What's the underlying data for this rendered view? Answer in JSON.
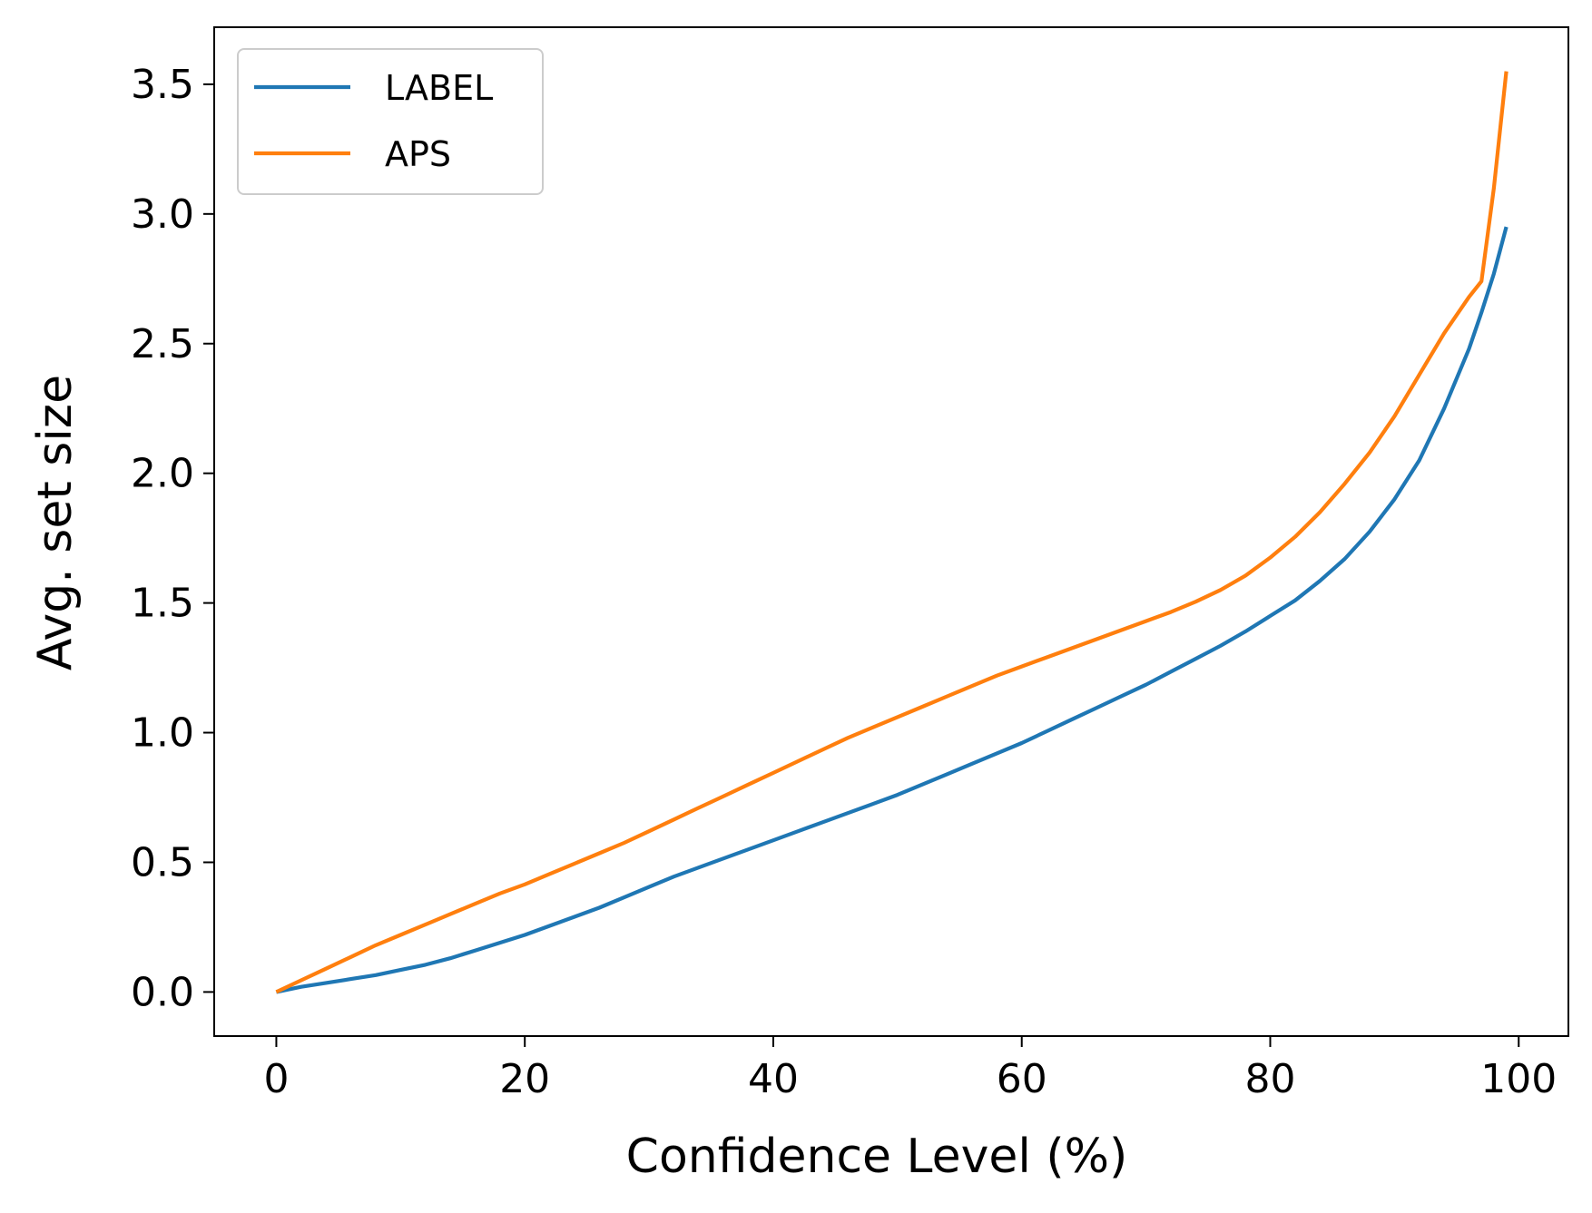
{
  "chart_data": {
    "type": "line",
    "title": "",
    "xlabel": "Confidence Level (%)",
    "ylabel": "Avg. set size",
    "xlim": [
      -5,
      104
    ],
    "ylim": [
      -0.17,
      3.72
    ],
    "xticks": [
      0,
      20,
      40,
      60,
      80,
      100
    ],
    "xtick_labels": [
      "0",
      "20",
      "40",
      "60",
      "80",
      "100"
    ],
    "yticks": [
      0.0,
      0.5,
      1.0,
      1.5,
      2.0,
      2.5,
      3.0,
      3.5
    ],
    "ytick_labels": [
      "0.0",
      "0.5",
      "1.0",
      "1.5",
      "2.0",
      "2.5",
      "3.0",
      "3.5"
    ],
    "grid": false,
    "legend_position": "top-left",
    "series": [
      {
        "name": "LABEL",
        "color": "#1f77b4",
        "x": [
          0,
          2,
          4,
          6,
          8,
          10,
          12,
          14,
          16,
          18,
          20,
          22,
          24,
          26,
          28,
          30,
          32,
          34,
          36,
          38,
          40,
          42,
          44,
          46,
          48,
          50,
          52,
          54,
          56,
          58,
          60,
          62,
          64,
          66,
          68,
          70,
          72,
          74,
          76,
          78,
          80,
          82,
          84,
          86,
          88,
          90,
          92,
          94,
          96,
          97,
          98,
          99
        ],
        "y": [
          0.0,
          0.02,
          0.035,
          0.05,
          0.065,
          0.085,
          0.105,
          0.13,
          0.16,
          0.19,
          0.22,
          0.255,
          0.29,
          0.325,
          0.365,
          0.405,
          0.445,
          0.48,
          0.515,
          0.55,
          0.585,
          0.62,
          0.655,
          0.69,
          0.725,
          0.76,
          0.8,
          0.84,
          0.88,
          0.92,
          0.96,
          1.005,
          1.05,
          1.095,
          1.14,
          1.185,
          1.235,
          1.285,
          1.335,
          1.39,
          1.45,
          1.51,
          1.585,
          1.67,
          1.775,
          1.9,
          2.05,
          2.25,
          2.48,
          2.62,
          2.77,
          2.95
        ]
      },
      {
        "name": "APS",
        "color": "#ff7f0e",
        "x": [
          0,
          2,
          4,
          6,
          8,
          10,
          12,
          14,
          16,
          18,
          20,
          22,
          24,
          26,
          28,
          30,
          32,
          34,
          36,
          38,
          40,
          42,
          44,
          46,
          48,
          50,
          52,
          54,
          56,
          58,
          60,
          62,
          64,
          66,
          68,
          70,
          72,
          74,
          76,
          78,
          80,
          82,
          84,
          86,
          88,
          90,
          92,
          94,
          96,
          97,
          98,
          99
        ],
        "y": [
          0.0,
          0.045,
          0.09,
          0.135,
          0.18,
          0.22,
          0.26,
          0.3,
          0.34,
          0.38,
          0.415,
          0.455,
          0.495,
          0.535,
          0.575,
          0.62,
          0.665,
          0.71,
          0.755,
          0.8,
          0.845,
          0.89,
          0.935,
          0.98,
          1.02,
          1.06,
          1.1,
          1.14,
          1.18,
          1.22,
          1.255,
          1.29,
          1.325,
          1.36,
          1.395,
          1.43,
          1.465,
          1.505,
          1.55,
          1.605,
          1.675,
          1.755,
          1.85,
          1.96,
          2.08,
          2.22,
          2.38,
          2.54,
          2.68,
          2.74,
          3.1,
          3.55
        ]
      }
    ]
  }
}
